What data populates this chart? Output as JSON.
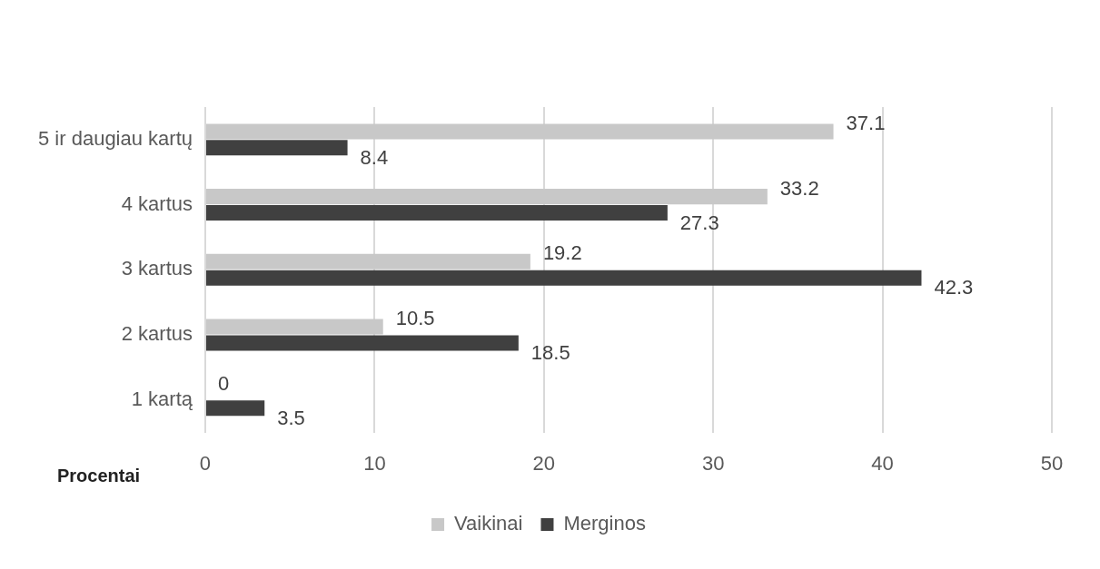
{
  "chart_data": {
    "type": "bar",
    "orientation": "horizontal",
    "xlabel": "Procentai",
    "categories": [
      "5 ir daugiau kartų",
      "4 kartus",
      "3 kartus",
      "2 kartus",
      "1 kartą"
    ],
    "series": [
      {
        "name": "Vaikinai",
        "color": "#c8c8c8",
        "values": [
          37.1,
          33.2,
          19.2,
          10.5,
          0
        ]
      },
      {
        "name": "Merginos",
        "color": "#404040",
        "values": [
          8.4,
          27.3,
          42.3,
          18.5,
          3.5
        ]
      }
    ],
    "xlim": [
      0,
      50
    ],
    "xticks": [
      0,
      10,
      20,
      30,
      40,
      50
    ],
    "grid": "x",
    "legend": "bottom",
    "data_labels": true
  }
}
